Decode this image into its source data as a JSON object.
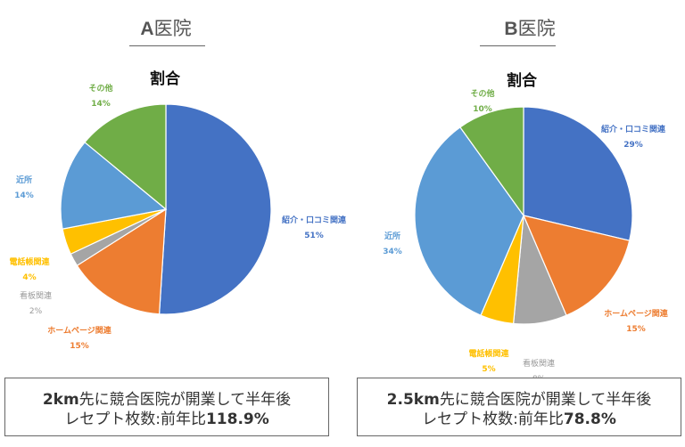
{
  "panels": [
    {
      "heading_bold": "A",
      "heading_rest": "医院",
      "chart_title": "割合",
      "caption_line1_bold": "2km",
      "caption_line1_rest": "先に競合医院が開業して半年後",
      "caption_line2_rest": "レセプト枚数:前年比",
      "caption_line2_bold": "118.9%"
    },
    {
      "heading_bold": "B",
      "heading_rest": "医院",
      "chart_title": "割合",
      "caption_line1_bold": "2.5km",
      "caption_line1_rest": "先に競合医院が開業して半年後",
      "caption_line2_rest": "レセプト枚数:前年比",
      "caption_line2_bold": "78.8%"
    }
  ],
  "chart_data": [
    {
      "type": "pie",
      "title": "割合",
      "panel": "A医院",
      "categories": [
        "紹介・口コミ関連",
        "ホームページ関連",
        "看板関連",
        "電話帳関連",
        "近所",
        "その他"
      ],
      "values": [
        51,
        15,
        2,
        4,
        14,
        14
      ],
      "labels": [
        "51%",
        "15%",
        "2%",
        "4%",
        "14%",
        "14%"
      ],
      "colors": [
        "#4472C4",
        "#ED7D31",
        "#A5A5A5",
        "#FFC000",
        "#5B9BD5",
        "#70AD47"
      ],
      "start_angle": "12 o'clock, clockwise",
      "legend": "data labels outside slices"
    },
    {
      "type": "pie",
      "title": "割合",
      "panel": "B医院",
      "categories": [
        "紹介・口コミ関連",
        "ホームページ関連",
        "看板関連",
        "電話帳関連",
        "近所",
        "その他"
      ],
      "values": [
        29,
        15,
        8,
        5,
        34,
        10
      ],
      "labels": [
        "29%",
        "15%",
        "8%",
        "5%",
        "34%",
        "10%"
      ],
      "colors": [
        "#4472C4",
        "#ED7D31",
        "#A5A5A5",
        "#FFC000",
        "#5B9BD5",
        "#70AD47"
      ],
      "start_angle": "12 o'clock, clockwise",
      "legend": "data labels outside slices"
    }
  ]
}
